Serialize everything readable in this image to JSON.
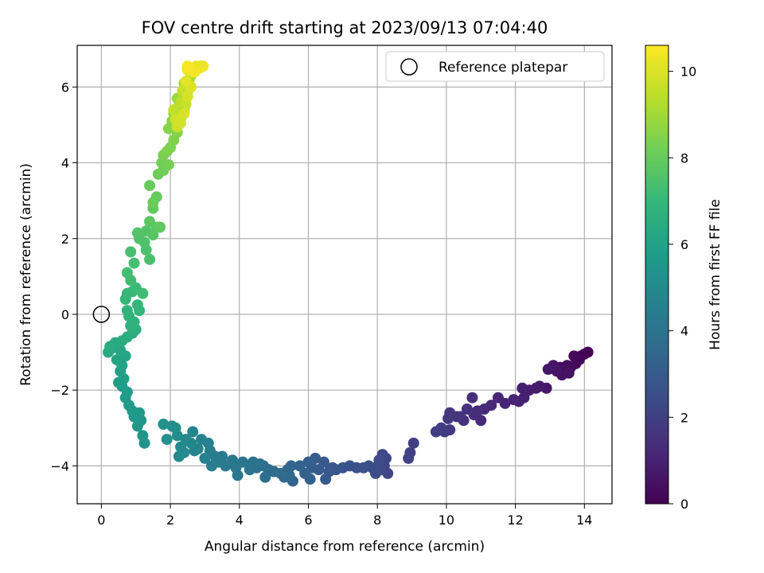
{
  "chart_data": {
    "type": "scatter",
    "title": "FOV centre drift starting at 2023/09/13 07:04:40",
    "xlabel": "Angular distance from reference (arcmin)",
    "ylabel": "Rotation from reference (arcmin)",
    "xlim": [
      -0.7,
      14.8
    ],
    "ylim": [
      -5.0,
      7.1
    ],
    "xticks": [
      0,
      2,
      4,
      6,
      8,
      10,
      12,
      14
    ],
    "yticks": [
      -4,
      -2,
      0,
      2,
      4,
      6
    ],
    "grid": true,
    "legend": {
      "position": "top-right",
      "entries": [
        "Reference platepar"
      ]
    },
    "reference_point": {
      "x": 0,
      "y": 0,
      "label": "Reference platepar"
    },
    "colorbar": {
      "label": "Hours from first FF file",
      "range": [
        0,
        10.6
      ],
      "ticks": [
        0,
        2,
        4,
        6,
        8,
        10
      ],
      "colormap": "viridis"
    },
    "colors": {
      "grid": "#b0b0b0",
      "reference_marker": "#000000"
    },
    "series": [
      {
        "columns": [
          "x",
          "y",
          "hours"
        ],
        "points": [
          [
            14.1,
            -1.0,
            0.0
          ],
          [
            14.0,
            -1.05,
            0.05
          ],
          [
            13.9,
            -1.1,
            0.1
          ],
          [
            13.85,
            -1.2,
            0.15
          ],
          [
            13.7,
            -1.1,
            0.2
          ],
          [
            13.75,
            -1.3,
            0.25
          ],
          [
            13.6,
            -1.4,
            0.3
          ],
          [
            13.5,
            -1.35,
            0.35
          ],
          [
            13.3,
            -1.4,
            0.4
          ],
          [
            13.35,
            -1.6,
            0.45
          ],
          [
            13.55,
            -1.55,
            0.5
          ],
          [
            13.2,
            -1.5,
            0.55
          ],
          [
            13.1,
            -1.35,
            0.6
          ],
          [
            12.95,
            -1.45,
            0.65
          ],
          [
            12.9,
            -1.95,
            0.7
          ],
          [
            12.7,
            -1.9,
            0.75
          ],
          [
            12.6,
            -1.95,
            0.8
          ],
          [
            12.4,
            -2.0,
            0.85
          ],
          [
            12.2,
            -1.95,
            0.9
          ],
          [
            12.25,
            -2.2,
            0.95
          ],
          [
            12.1,
            -2.3,
            1.0
          ],
          [
            11.95,
            -2.25,
            1.05
          ],
          [
            11.7,
            -2.35,
            1.1
          ],
          [
            11.5,
            -2.2,
            1.15
          ],
          [
            11.3,
            -2.4,
            1.2
          ],
          [
            11.1,
            -2.5,
            1.25
          ],
          [
            11.0,
            -2.8,
            1.3
          ],
          [
            10.9,
            -2.55,
            1.35
          ],
          [
            10.8,
            -2.65,
            1.4
          ],
          [
            10.75,
            -2.2,
            1.45
          ],
          [
            10.6,
            -2.5,
            1.5
          ],
          [
            10.5,
            -2.8,
            1.55
          ],
          [
            10.4,
            -2.7,
            1.6
          ],
          [
            10.3,
            -2.7,
            1.65
          ],
          [
            10.1,
            -2.6,
            1.7
          ],
          [
            10.05,
            -2.75,
            1.75
          ],
          [
            10.1,
            -3.05,
            1.8
          ],
          [
            9.95,
            -3.1,
            1.85
          ],
          [
            9.85,
            -3.0,
            1.9
          ],
          [
            9.7,
            -3.1,
            1.95
          ],
          [
            9.05,
            -3.4,
            2.0
          ],
          [
            8.95,
            -3.65,
            2.05
          ],
          [
            8.9,
            -3.8,
            2.1
          ],
          [
            8.3,
            -4.2,
            2.15
          ],
          [
            8.25,
            -3.8,
            2.2
          ],
          [
            8.2,
            -4.0,
            2.25
          ],
          [
            8.15,
            -3.7,
            2.3
          ],
          [
            8.1,
            -4.1,
            2.35
          ],
          [
            8.05,
            -3.85,
            2.4
          ],
          [
            7.95,
            -4.2,
            2.45
          ],
          [
            7.85,
            -4.05,
            2.5
          ],
          [
            7.75,
            -4.0,
            2.55
          ],
          [
            7.6,
            -4.05,
            2.6
          ],
          [
            7.4,
            -4.05,
            2.65
          ],
          [
            7.2,
            -4.0,
            2.7
          ],
          [
            7.0,
            -4.05,
            2.75
          ],
          [
            6.8,
            -4.1,
            2.8
          ],
          [
            6.7,
            -4.05,
            2.85
          ],
          [
            6.6,
            -4.15,
            2.9
          ],
          [
            6.5,
            -4.35,
            2.95
          ],
          [
            6.45,
            -3.9,
            3.0
          ],
          [
            6.3,
            -4.1,
            3.05
          ],
          [
            6.2,
            -3.8,
            3.1
          ],
          [
            6.1,
            -4.05,
            3.15
          ],
          [
            6.0,
            -3.9,
            3.2
          ],
          [
            6.05,
            -4.35,
            3.25
          ],
          [
            5.9,
            -4.2,
            3.3
          ],
          [
            5.75,
            -4.0,
            3.35
          ],
          [
            5.55,
            -4.4,
            3.4
          ],
          [
            5.5,
            -4.0,
            3.45
          ],
          [
            5.45,
            -4.25,
            3.5
          ],
          [
            5.4,
            -4.1,
            3.55
          ],
          [
            5.3,
            -4.3,
            3.6
          ],
          [
            5.2,
            -4.2,
            3.65
          ],
          [
            5.0,
            -4.15,
            3.7
          ],
          [
            4.85,
            -4.1,
            3.75
          ],
          [
            4.75,
            -4.3,
            3.8
          ],
          [
            4.7,
            -4.0,
            3.85
          ],
          [
            4.6,
            -3.95,
            3.9
          ],
          [
            4.5,
            -4.05,
            3.95
          ],
          [
            4.4,
            -3.9,
            4.0
          ],
          [
            4.3,
            -4.1,
            4.05
          ],
          [
            4.1,
            -3.9,
            4.1
          ],
          [
            3.95,
            -4.25,
            4.15
          ],
          [
            3.9,
            -4.05,
            4.2
          ],
          [
            3.8,
            -3.85,
            4.25
          ],
          [
            3.6,
            -4.0,
            4.3
          ],
          [
            3.5,
            -3.75,
            4.35
          ],
          [
            3.4,
            -3.9,
            4.4
          ],
          [
            3.3,
            -3.75,
            4.45
          ],
          [
            3.2,
            -4.0,
            4.5
          ],
          [
            3.15,
            -3.6,
            4.55
          ],
          [
            3.1,
            -3.4,
            4.6
          ],
          [
            3.0,
            -3.8,
            4.65
          ],
          [
            2.9,
            -3.3,
            4.7
          ],
          [
            2.8,
            -3.55,
            4.75
          ],
          [
            2.7,
            -3.6,
            4.8
          ],
          [
            2.65,
            -3.1,
            4.85
          ],
          [
            2.6,
            -3.4,
            4.9
          ],
          [
            2.45,
            -3.3,
            4.95
          ],
          [
            2.4,
            -3.65,
            5.0
          ],
          [
            2.3,
            -3.5,
            5.05
          ],
          [
            2.25,
            -3.75,
            5.1
          ],
          [
            2.2,
            -3.2,
            5.15
          ],
          [
            2.15,
            -3.0,
            5.2
          ],
          [
            2.05,
            -2.95,
            5.25
          ],
          [
            1.9,
            -3.3,
            5.3
          ],
          [
            1.8,
            -2.9,
            5.35
          ],
          [
            1.25,
            -3.4,
            5.4
          ],
          [
            1.2,
            -3.2,
            5.45
          ],
          [
            1.15,
            -2.8,
            5.5
          ],
          [
            1.1,
            -2.6,
            5.55
          ],
          [
            1.05,
            -2.95,
            5.6
          ],
          [
            0.95,
            -2.7,
            5.65
          ],
          [
            0.9,
            -2.55,
            5.7
          ],
          [
            0.8,
            -2.4,
            5.75
          ],
          [
            0.7,
            -2.2,
            5.8
          ],
          [
            0.75,
            -2.05,
            5.85
          ],
          [
            0.6,
            -1.9,
            5.9
          ],
          [
            0.5,
            -1.8,
            5.95
          ],
          [
            0.65,
            -1.7,
            6.0
          ],
          [
            0.55,
            -1.5,
            6.05
          ],
          [
            0.6,
            -1.35,
            6.1
          ],
          [
            0.45,
            -1.2,
            6.15
          ],
          [
            0.7,
            -1.1,
            6.2
          ],
          [
            0.55,
            -0.95,
            6.25
          ],
          [
            0.5,
            -0.8,
            6.3
          ],
          [
            0.4,
            -0.75,
            6.35
          ],
          [
            0.3,
            -0.9,
            6.4
          ],
          [
            0.2,
            -1.0,
            6.45
          ],
          [
            0.25,
            -0.85,
            6.5
          ],
          [
            0.6,
            -0.7,
            6.55
          ],
          [
            0.75,
            -0.6,
            6.6
          ],
          [
            0.9,
            -0.5,
            6.65
          ],
          [
            1.0,
            -0.4,
            6.7
          ],
          [
            0.85,
            -0.3,
            6.75
          ],
          [
            0.95,
            -0.2,
            6.8
          ],
          [
            0.8,
            -0.05,
            6.85
          ],
          [
            0.75,
            0.1,
            6.9
          ],
          [
            1.1,
            0.1,
            6.95
          ],
          [
            1.05,
            0.25,
            7.0
          ],
          [
            0.7,
            0.4,
            7.05
          ],
          [
            0.75,
            0.55,
            7.1
          ],
          [
            0.9,
            0.6,
            7.15
          ],
          [
            1.0,
            0.7,
            7.2
          ],
          [
            1.2,
            0.55,
            7.25
          ],
          [
            0.85,
            0.9,
            7.3
          ],
          [
            0.75,
            1.1,
            7.35
          ],
          [
            0.95,
            1.35,
            7.4
          ],
          [
            0.85,
            1.65,
            7.45
          ],
          [
            1.4,
            1.45,
            7.5
          ],
          [
            1.3,
            1.7,
            7.55
          ],
          [
            1.25,
            1.9,
            7.6
          ],
          [
            1.1,
            2.0,
            7.65
          ],
          [
            1.05,
            2.15,
            7.7
          ],
          [
            1.3,
            2.2,
            7.75
          ],
          [
            1.5,
            2.1,
            7.8
          ],
          [
            1.6,
            2.3,
            7.85
          ],
          [
            1.4,
            2.45,
            7.9
          ],
          [
            1.7,
            2.3,
            7.95
          ],
          [
            1.5,
            2.8,
            8.0
          ],
          [
            1.6,
            3.1,
            8.05
          ],
          [
            1.4,
            3.4,
            8.1
          ],
          [
            1.5,
            2.95,
            8.15
          ],
          [
            1.65,
            3.7,
            8.2
          ],
          [
            1.8,
            3.8,
            8.25
          ],
          [
            1.75,
            4.0,
            8.3
          ],
          [
            1.95,
            3.95,
            8.35
          ],
          [
            1.8,
            4.2,
            8.4
          ],
          [
            2.0,
            4.4,
            8.45
          ],
          [
            1.9,
            4.3,
            8.5
          ],
          [
            2.1,
            4.6,
            8.55
          ],
          [
            2.2,
            4.8,
            8.6
          ],
          [
            1.95,
            4.9,
            8.65
          ],
          [
            2.05,
            5.1,
            8.7
          ],
          [
            2.2,
            5.0,
            8.75
          ],
          [
            2.3,
            5.2,
            8.8
          ],
          [
            2.1,
            5.3,
            8.85
          ],
          [
            2.25,
            5.5,
            8.9
          ],
          [
            2.4,
            5.4,
            8.95
          ],
          [
            2.2,
            5.7,
            9.0
          ],
          [
            2.35,
            5.8,
            9.05
          ],
          [
            2.5,
            5.9,
            9.1
          ],
          [
            2.4,
            6.1,
            9.15
          ],
          [
            2.55,
            6.2,
            9.2
          ],
          [
            2.6,
            6.3,
            9.25
          ],
          [
            2.7,
            6.45,
            9.3
          ],
          [
            2.8,
            6.5,
            9.35
          ],
          [
            2.9,
            6.55,
            9.4
          ],
          [
            2.5,
            6.5,
            9.45
          ],
          [
            2.2,
            5.2,
            9.5
          ],
          [
            2.3,
            5.6,
            9.55
          ],
          [
            2.1,
            5.4,
            9.6
          ],
          [
            2.45,
            5.55,
            9.65
          ],
          [
            2.35,
            5.9,
            9.7
          ],
          [
            2.55,
            6.05,
            9.75
          ],
          [
            2.2,
            4.95,
            9.8
          ],
          [
            2.15,
            5.15,
            9.85
          ],
          [
            2.3,
            5.05,
            9.9
          ],
          [
            2.5,
            5.75,
            9.95
          ],
          [
            2.4,
            5.3,
            10.0
          ],
          [
            2.6,
            6.0,
            10.05
          ],
          [
            2.65,
            6.4,
            10.1
          ],
          [
            2.45,
            6.15,
            10.15
          ],
          [
            2.75,
            6.55,
            10.2
          ],
          [
            2.85,
            6.5,
            10.25
          ],
          [
            2.5,
            6.45,
            10.3
          ],
          [
            2.95,
            6.55,
            10.35
          ],
          [
            2.6,
            6.5,
            10.4
          ],
          [
            2.7,
            6.4,
            10.45
          ],
          [
            2.5,
            6.55,
            10.5
          ]
        ]
      }
    ]
  }
}
